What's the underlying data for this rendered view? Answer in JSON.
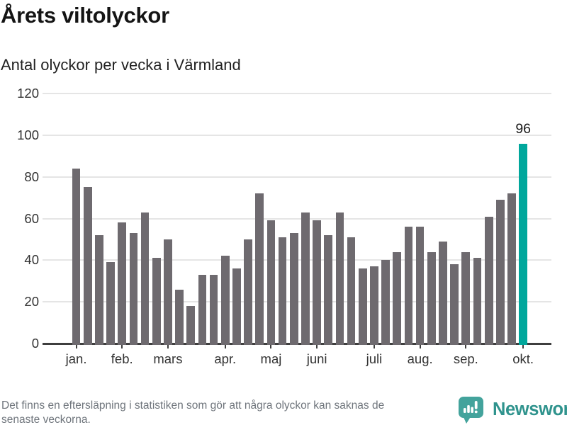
{
  "chart_data": {
    "type": "bar",
    "title": "Årets viltolyckor",
    "subtitle": "Antal olyckor per vecka i Värmland",
    "xlabel": "",
    "ylabel": "",
    "ylim": [
      0,
      120
    ],
    "y_ticks": [
      0,
      20,
      40,
      60,
      80,
      100,
      120
    ],
    "grid": "horizontal",
    "values": [
      84,
      75,
      52,
      39,
      58,
      53,
      63,
      41,
      50,
      26,
      18,
      33,
      33,
      42,
      36,
      50,
      72,
      59,
      51,
      53,
      63,
      59,
      52,
      63,
      51,
      36,
      37,
      40,
      44,
      56,
      56,
      44,
      49,
      38,
      44,
      41,
      61,
      69,
      72,
      96
    ],
    "x_tick_labels": [
      "jan.",
      "feb.",
      "mars",
      "apr.",
      "maj",
      "juni",
      "juli",
      "aug.",
      "sep.",
      "okt."
    ],
    "x_tick_indices": [
      0,
      4,
      8,
      13,
      17,
      21,
      26,
      30,
      34,
      39
    ],
    "highlight": {
      "index": 39,
      "label": "96"
    },
    "colors": {
      "bar": "#6e6a6f",
      "highlight_bar": "#00a79c",
      "gridline": "#e5e5e5",
      "axis_line": "#3e3e3e",
      "tick_label": "#333333",
      "annotation": "#1a1a1a"
    }
  },
  "footer": {
    "note_lines": [
      "Det finns en eftersläpning i statistiken som gör att några olyckor kan saknas de",
      "senaste veckorna."
    ],
    "logo_text": "Newsworthy"
  }
}
